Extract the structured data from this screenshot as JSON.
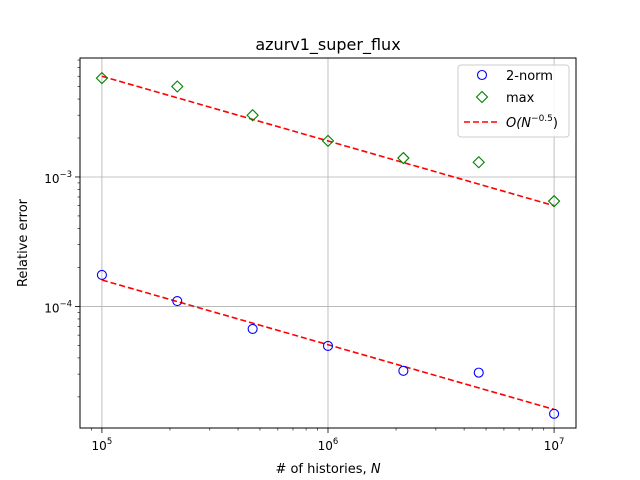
{
  "chart_data": {
    "type": "scatter",
    "title": "azurv1_super_flux",
    "xlabel": "# of histories, N",
    "ylabel": "Relative error",
    "xscale": "log",
    "yscale": "log",
    "xlim": [
      80000,
      12500000
    ],
    "ylim": [
      1.15e-05,
      0.0083
    ],
    "xticks": [
      {
        "value": 100000,
        "base": "10",
        "exp": "5"
      },
      {
        "value": 1000000,
        "base": "10",
        "exp": "6"
      },
      {
        "value": 10000000,
        "base": "10",
        "exp": "7"
      }
    ],
    "yticks": [
      {
        "value": 0.0001,
        "base": "10",
        "exp": "−4"
      },
      {
        "value": 0.001,
        "base": "10",
        "exp": "−3"
      }
    ],
    "grid": true,
    "legend_position": "top-right",
    "series": [
      {
        "name": "2-norm",
        "marker": "circle",
        "color": "#0000ff",
        "x": [
          100000,
          215443,
          464159,
          1000000,
          2154435,
          4641589,
          10000000
        ],
        "y": [
          0.000175,
          0.00011,
          6.7e-05,
          4.95e-05,
          3.18e-05,
          3.08e-05,
          1.48e-05
        ]
      },
      {
        "name": "max",
        "marker": "diamond",
        "color": "#008000",
        "x": [
          100000,
          215443,
          464159,
          1000000,
          2154435,
          4641589,
          10000000
        ],
        "y": [
          0.0058,
          0.005,
          0.003,
          0.0019,
          0.0014,
          0.0013,
          0.00065
        ]
      },
      {
        "name": "O(N^-0.5)",
        "legend_main": "O(N",
        "legend_exp": "−0.5",
        "legend_close": ")",
        "marker": "dashed-line",
        "color": "#ff0000",
        "lines": [
          {
            "x": [
              100000,
              10000000
            ],
            "y": [
              0.006,
              0.0006
            ]
          },
          {
            "x": [
              100000,
              10000000
            ],
            "y": [
              0.00016,
              1.6e-05
            ]
          }
        ]
      }
    ]
  }
}
